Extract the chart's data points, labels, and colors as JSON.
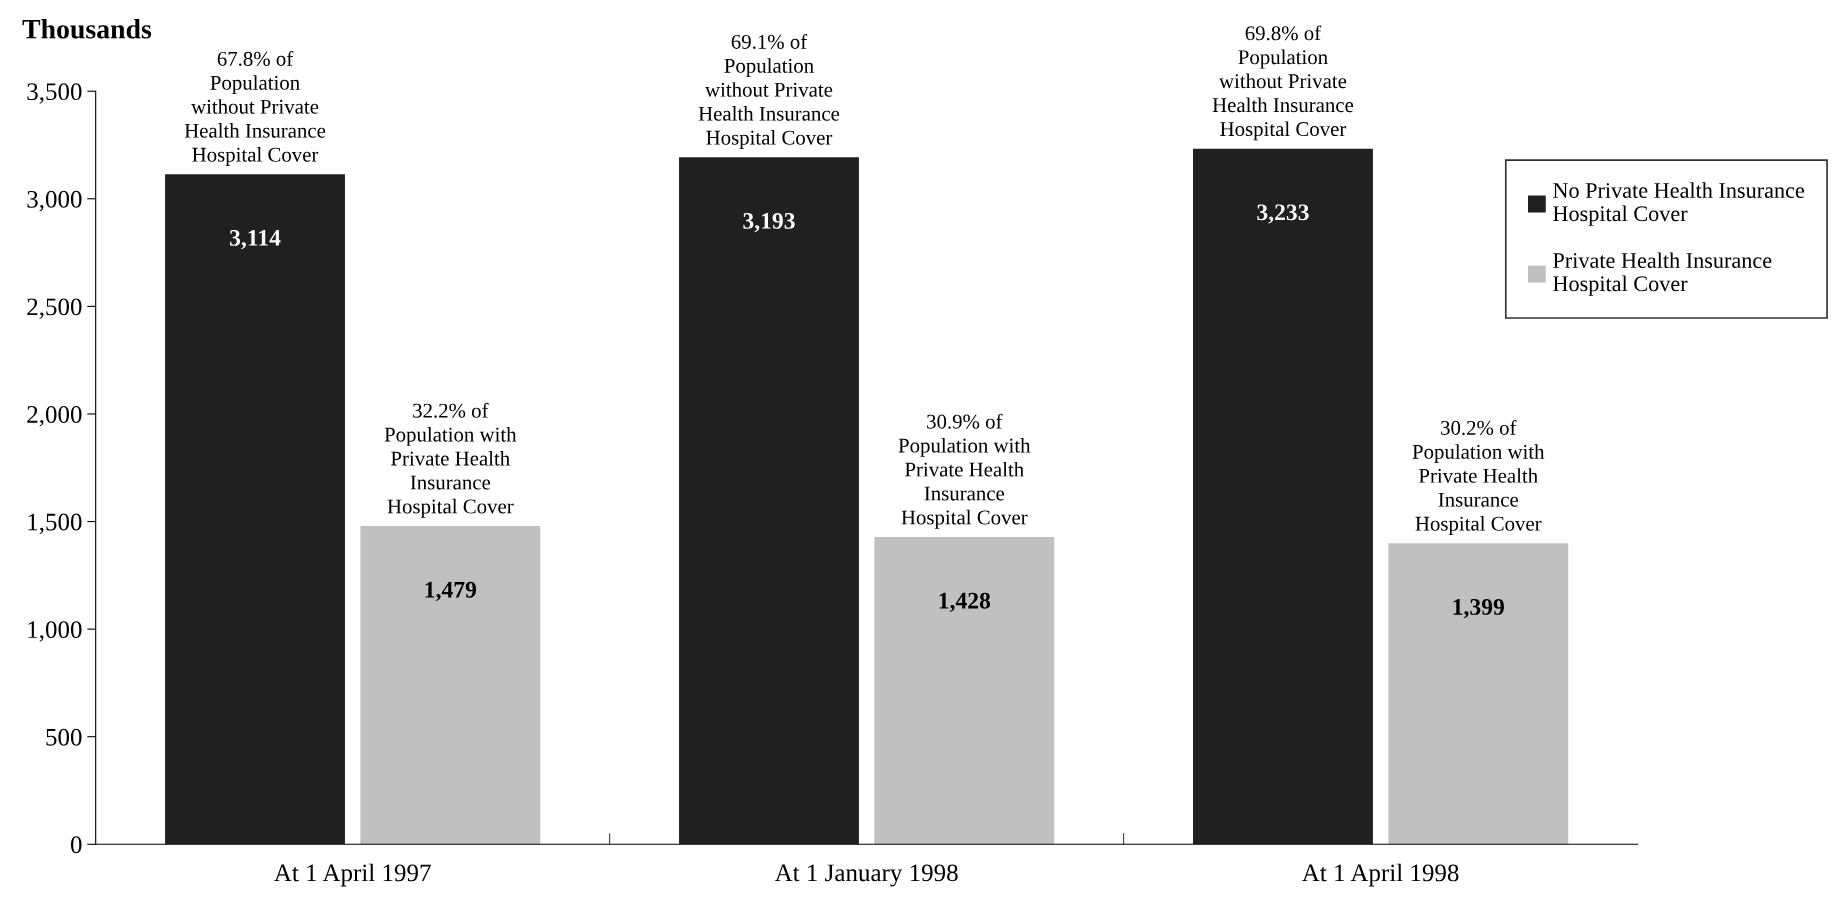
{
  "chart_data": {
    "type": "bar",
    "ylabel": "Thousands",
    "categories": [
      "At 1 April 1997",
      "At 1 January 1998",
      "At 1 April 1998"
    ],
    "series": [
      {
        "name": "No Private Health Insurance\nHospital Cover",
        "color": "#202020",
        "values": [
          3114,
          3193,
          3233
        ],
        "value_labels": [
          "3,114",
          "3,193",
          "3,233"
        ]
      },
      {
        "name": "Private Health Insurance\nHospital Cover",
        "color": "#c0c0c0",
        "values": [
          1479,
          1428,
          1399
        ],
        "value_labels": [
          "1,479",
          "1,428",
          "1,399"
        ]
      }
    ],
    "ylim": [
      0,
      3500
    ],
    "yticks": [
      0,
      {
        "value": 500,
        "label": "500"
      },
      {
        "value": 1000,
        "label": "1,000"
      },
      {
        "value": 1500,
        "label": "1,500"
      },
      {
        "value": 2000,
        "label": "2,000"
      },
      {
        "value": 2500,
        "label": "2,500"
      },
      {
        "value": 3000,
        "label": "3,000"
      },
      {
        "value": 3500,
        "label": "3,500"
      }
    ],
    "legend": "right",
    "grid": false,
    "annotations": [
      "67.8% of\nPopulation\nwithout Private\nHealth Insurance\nHospital Cover",
      "32.2% of\nPopulation with\nPrivate Health\nInsurance\nHospital Cover",
      "69.1% of\nPopulation\nwithout Private\nHealth Insurance\nHospital Cover",
      "30.9% of\nPopulation with\nPrivate Health\nInsurance\nHospital Cover",
      "69.8% of\nPopulation\nwithout Private\nHealth Insurance\nHospital Cover",
      "30.2% of\nPopulation with\nPrivate Health\nInsurance\nHospital Cover"
    ]
  }
}
